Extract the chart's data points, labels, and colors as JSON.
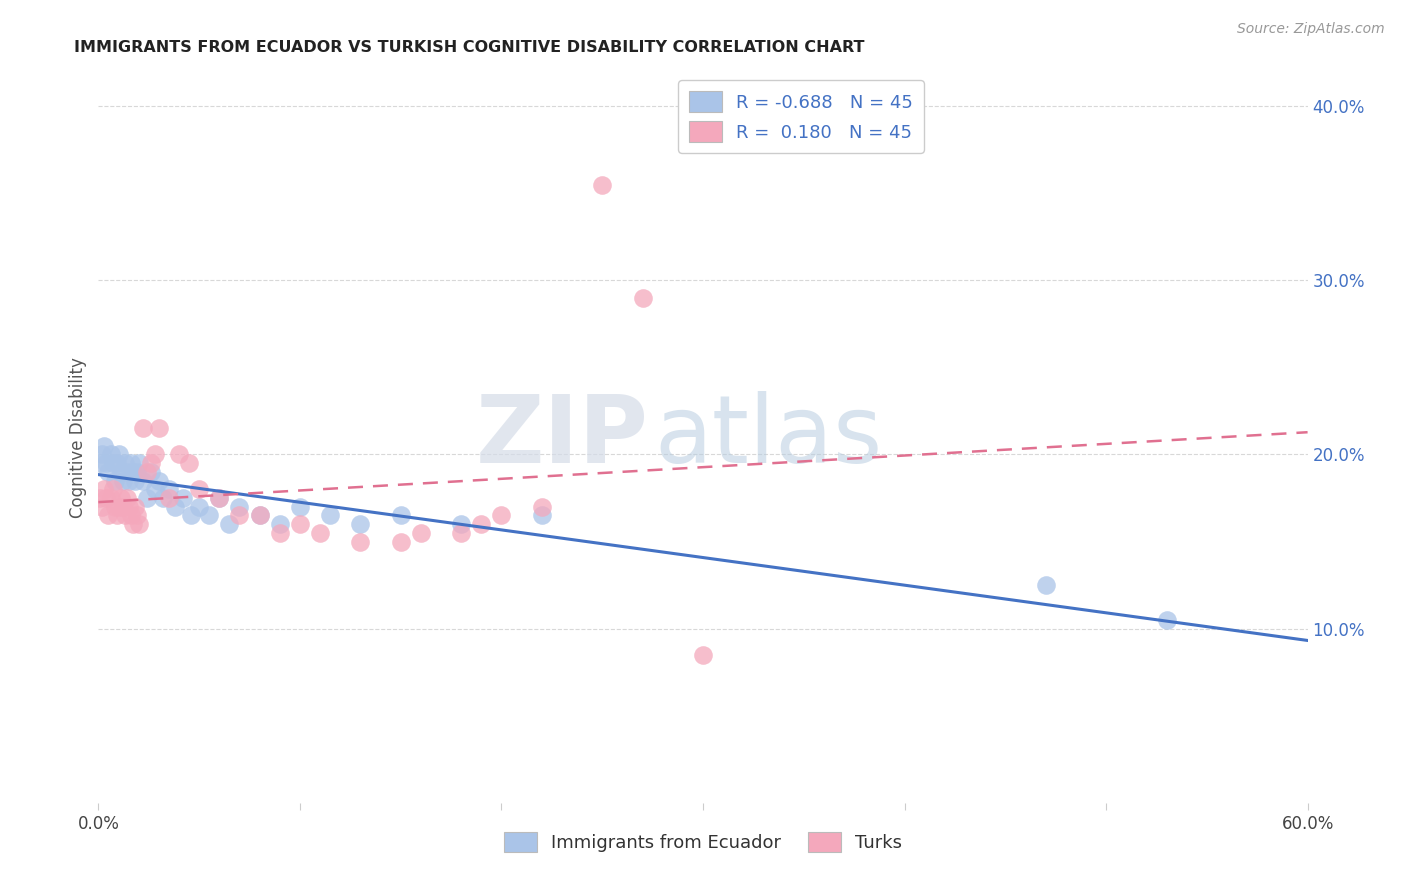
{
  "title": "IMMIGRANTS FROM ECUADOR VS TURKISH COGNITIVE DISABILITY CORRELATION CHART",
  "source": "Source: ZipAtlas.com",
  "ylabel": "Cognitive Disability",
  "watermark_zip": "ZIP",
  "watermark_atlas": "atlas",
  "x_min": 0.0,
  "x_max": 0.6,
  "y_min": 0.0,
  "y_max": 0.42,
  "x_tick_pos": [
    0.0,
    0.1,
    0.2,
    0.3,
    0.4,
    0.5,
    0.6
  ],
  "x_tick_labels": [
    "0.0%",
    "",
    "",
    "",
    "",
    "",
    "60.0%"
  ],
  "y_ticks_right": [
    0.1,
    0.2,
    0.3,
    0.4
  ],
  "y_tick_labels_right": [
    "10.0%",
    "20.0%",
    "30.0%",
    "40.0%"
  ],
  "ecuador_color": "#aac4e8",
  "turks_color": "#f4a8bc",
  "ecuador_line_color": "#4472c4",
  "turks_line_color": "#e07090",
  "turks_line_dashed_color": "#e8a0b0",
  "legend_ecuador_label": "R = -0.688   N = 45",
  "legend_turks_label": "R =  0.180   N = 45",
  "bottom_legend_ecuador": "Immigrants from Ecuador",
  "bottom_legend_turks": "Turks",
  "ecuador_scatter_x": [
    0.001,
    0.002,
    0.003,
    0.004,
    0.005,
    0.006,
    0.007,
    0.008,
    0.009,
    0.01,
    0.011,
    0.012,
    0.013,
    0.014,
    0.015,
    0.016,
    0.017,
    0.018,
    0.019,
    0.02,
    0.022,
    0.024,
    0.026,
    0.028,
    0.03,
    0.032,
    0.035,
    0.038,
    0.042,
    0.046,
    0.05,
    0.055,
    0.06,
    0.065,
    0.07,
    0.08,
    0.09,
    0.1,
    0.115,
    0.13,
    0.15,
    0.18,
    0.22,
    0.47,
    0.53
  ],
  "ecuador_scatter_y": [
    0.195,
    0.2,
    0.205,
    0.195,
    0.19,
    0.2,
    0.195,
    0.185,
    0.195,
    0.2,
    0.19,
    0.185,
    0.195,
    0.19,
    0.185,
    0.195,
    0.19,
    0.185,
    0.19,
    0.195,
    0.185,
    0.175,
    0.19,
    0.18,
    0.185,
    0.175,
    0.18,
    0.17,
    0.175,
    0.165,
    0.17,
    0.165,
    0.175,
    0.16,
    0.17,
    0.165,
    0.16,
    0.17,
    0.165,
    0.16,
    0.165,
    0.16,
    0.165,
    0.125,
    0.105
  ],
  "turks_scatter_x": [
    0.001,
    0.002,
    0.003,
    0.004,
    0.005,
    0.006,
    0.007,
    0.008,
    0.009,
    0.01,
    0.011,
    0.012,
    0.013,
    0.014,
    0.015,
    0.016,
    0.017,
    0.018,
    0.019,
    0.02,
    0.022,
    0.024,
    0.026,
    0.028,
    0.03,
    0.035,
    0.04,
    0.045,
    0.05,
    0.06,
    0.07,
    0.08,
    0.09,
    0.1,
    0.11,
    0.13,
    0.15,
    0.16,
    0.18,
    0.19,
    0.2,
    0.22,
    0.25,
    0.27,
    0.3
  ],
  "turks_scatter_y": [
    0.175,
    0.17,
    0.18,
    0.175,
    0.165,
    0.175,
    0.18,
    0.17,
    0.165,
    0.17,
    0.175,
    0.17,
    0.165,
    0.175,
    0.17,
    0.165,
    0.16,
    0.17,
    0.165,
    0.16,
    0.215,
    0.19,
    0.195,
    0.2,
    0.215,
    0.175,
    0.2,
    0.195,
    0.18,
    0.175,
    0.165,
    0.165,
    0.155,
    0.16,
    0.155,
    0.15,
    0.15,
    0.155,
    0.155,
    0.16,
    0.165,
    0.17,
    0.355,
    0.29,
    0.085
  ],
  "background_color": "#ffffff",
  "grid_color": "#d8d8d8"
}
